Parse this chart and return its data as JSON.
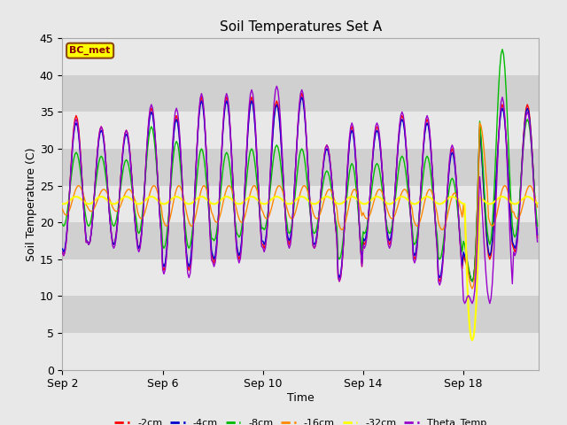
{
  "title": "Soil Temperatures Set A",
  "xlabel": "Time",
  "ylabel": "Soil Temperature (C)",
  "ylim": [
    0,
    45
  ],
  "yticks": [
    0,
    5,
    10,
    15,
    20,
    25,
    30,
    35,
    40,
    45
  ],
  "background_color": "#e8e8e8",
  "plot_bg_color": "#d8d8d8",
  "grid_band_color1": "#e8e8e8",
  "grid_band_color2": "#d0d0d0",
  "annotation_text": "BC_met",
  "annotation_bg": "#ffff00",
  "annotation_border": "#8b4513",
  "legend_labels": [
    "-2cm",
    "-4cm",
    "-8cm",
    "-16cm",
    "-32cm",
    "Theta_Temp"
  ],
  "legend_colors": [
    "#ff0000",
    "#0000cd",
    "#00bb00",
    "#ff8800",
    "#ffff00",
    "#9900cc"
  ],
  "line_colors": {
    "2cm": "#ff0000",
    "4cm": "#0000cd",
    "8cm": "#00bb00",
    "16cm": "#ff8800",
    "32cm": "#ffff00",
    "theta": "#9900cc"
  },
  "date_ticks": [
    "Sep 2",
    "Sep 6",
    "Sep 10",
    "Sep 14",
    "Sep 18"
  ],
  "date_tick_positions": [
    0,
    4,
    8,
    12,
    16
  ]
}
